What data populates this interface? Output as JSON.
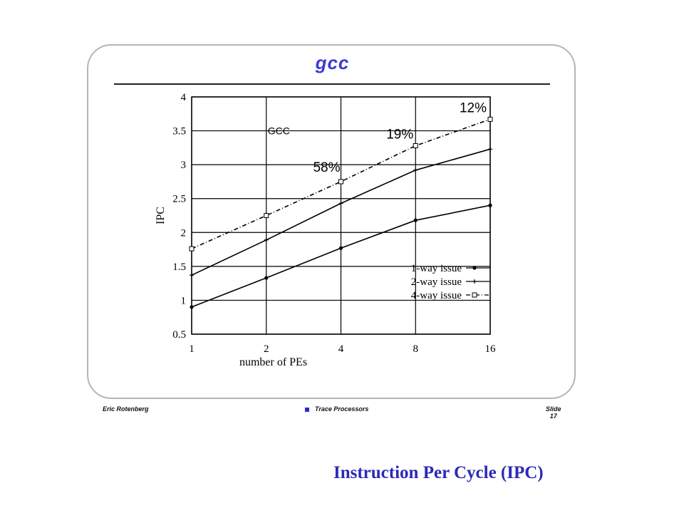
{
  "slide": {
    "title": "gcc",
    "footer_left": "Eric Rotenberg",
    "footer_center": "Trace Processors",
    "footer_right_line1": "Slide",
    "footer_right_line2": "17"
  },
  "caption": "Instruction Per Cycle (IPC)",
  "chart_data": {
    "type": "line",
    "title": "",
    "inner_label": "GCC",
    "xlabel": "number of PEs",
    "ylabel": "IPC",
    "x_scale": "log2",
    "x": [
      1,
      2,
      4,
      8,
      16
    ],
    "x_tick_labels": [
      "1",
      "2",
      "4",
      "8",
      "16"
    ],
    "ylim": [
      0.5,
      4
    ],
    "y_ticks": [
      0.5,
      1,
      1.5,
      2,
      2.5,
      3,
      3.5,
      4
    ],
    "y_tick_labels": [
      "0.5",
      "1",
      "1.5",
      "2",
      "2.5",
      "3",
      "3.5",
      "4"
    ],
    "grid": true,
    "legend_position": "lower-right",
    "series": [
      {
        "name": "1-way issue",
        "values": [
          0.9,
          1.33,
          1.77,
          2.18,
          2.4
        ],
        "marker": "dot",
        "dash": "solid",
        "color": "#000000"
      },
      {
        "name": "2-way issue",
        "values": [
          1.37,
          1.89,
          2.43,
          2.92,
          3.23
        ],
        "marker": "plus",
        "dash": "solid",
        "color": "#000000"
      },
      {
        "name": "4-way issue",
        "values": [
          1.76,
          2.25,
          2.75,
          3.28,
          3.67
        ],
        "marker": "square",
        "dash": "dashdot",
        "color": "#000000"
      }
    ],
    "annotations": [
      {
        "text": "58%",
        "x": 4
      },
      {
        "text": "19%",
        "x": 8
      },
      {
        "text": "12%",
        "x": 16
      }
    ]
  }
}
